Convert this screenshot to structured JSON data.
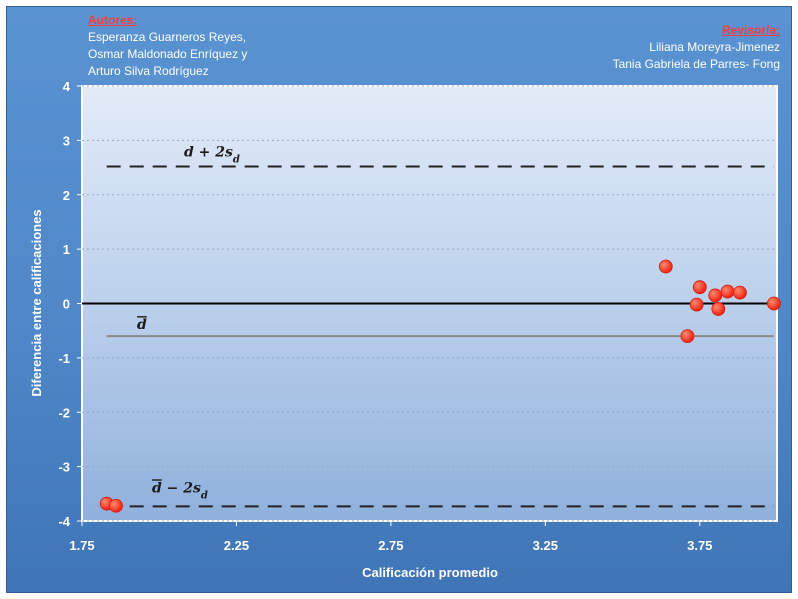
{
  "header": {
    "authors_label": "Autores:",
    "authors": [
      "Esperanza Guarneros Reyes,",
      "Osmar Maldonado Enríquez y",
      "Arturo Silva Rodríguez"
    ],
    "reviewers_label": "Revisor/a:",
    "reviewers": [
      "Liliana Moreyra-Jimenez",
      "Tania Gabriela de Parres- Fong"
    ]
  },
  "colors": {
    "point": "#ff1a1a",
    "limit_line": "#222222",
    "mean_line": "#8a8a8a",
    "zero_line": "#000000"
  },
  "chart_data": {
    "type": "scatter",
    "title": "",
    "xlabel": "Calificación promedio",
    "ylabel": "Diferencia entre calificaciones",
    "xlim": [
      1.75,
      4.0
    ],
    "ylim": [
      -4,
      4
    ],
    "x_ticks": [
      "1.75",
      "2.25",
      "2.75",
      "3.25",
      "3.75"
    ],
    "x_tick_values": [
      1.75,
      2.25,
      2.75,
      3.25,
      3.75
    ],
    "y_ticks": [
      "4",
      "3",
      "2",
      "1",
      "0",
      "-1",
      "-2",
      "-3",
      "-4"
    ],
    "y_tick_values": [
      4,
      3,
      2,
      1,
      0,
      -1,
      -2,
      -3,
      -4
    ],
    "grid": true,
    "points": [
      {
        "x": 1.83,
        "y": -3.68
      },
      {
        "x": 1.86,
        "y": -3.72
      },
      {
        "x": 3.64,
        "y": 0.68
      },
      {
        "x": 3.75,
        "y": 0.3
      },
      {
        "x": 3.8,
        "y": 0.15
      },
      {
        "x": 3.84,
        "y": 0.22
      },
      {
        "x": 3.88,
        "y": 0.2
      },
      {
        "x": 3.74,
        "y": -0.02
      },
      {
        "x": 3.81,
        "y": -0.1
      },
      {
        "x": 3.71,
        "y": -0.6
      },
      {
        "x": 3.99,
        "y": 0.0
      }
    ],
    "reference_lines": [
      {
        "label": "d + 2s_d",
        "y": 2.52,
        "x_range": [
          1.83,
          3.99
        ],
        "style": "dashed"
      },
      {
        "label": "d",
        "y": -0.6,
        "x_range": [
          1.83,
          3.99
        ],
        "style": "solid"
      },
      {
        "label": "d − 2s_d",
        "y": -3.73,
        "x_range": [
          1.83,
          3.99
        ],
        "style": "dashed"
      }
    ],
    "zero_line": {
      "y": 0
    }
  }
}
